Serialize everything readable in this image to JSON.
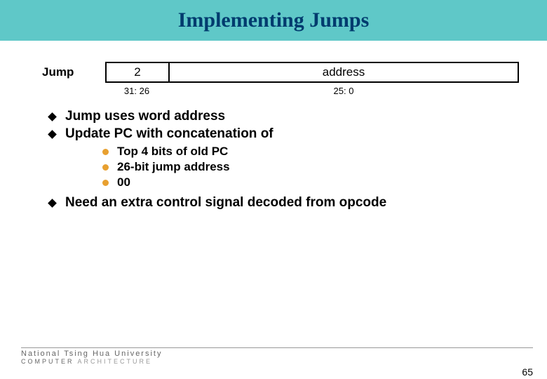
{
  "title": {
    "text": "Implementing Jumps",
    "bg_color": "#5fc8c8",
    "text_color": "#003b6e"
  },
  "format": {
    "label": "Jump",
    "opcode": "2",
    "addr_label": "address",
    "opcode_bits": "31: 26",
    "addr_bits": "25: 0"
  },
  "bullets": [
    "Jump uses word address",
    "Update PC with concatenation of"
  ],
  "sub_bullets": [
    "Top 4 bits of old PC",
    "26-bit jump address",
    "00"
  ],
  "sub_dot_color": "#e8a030",
  "bullet_after": "Need an extra control signal decoded from opcode",
  "footer": {
    "uni": "National Tsing Hua University",
    "dept1": "COMPUTER",
    "dept2": "ARCHITECTURE"
  },
  "page": "65"
}
